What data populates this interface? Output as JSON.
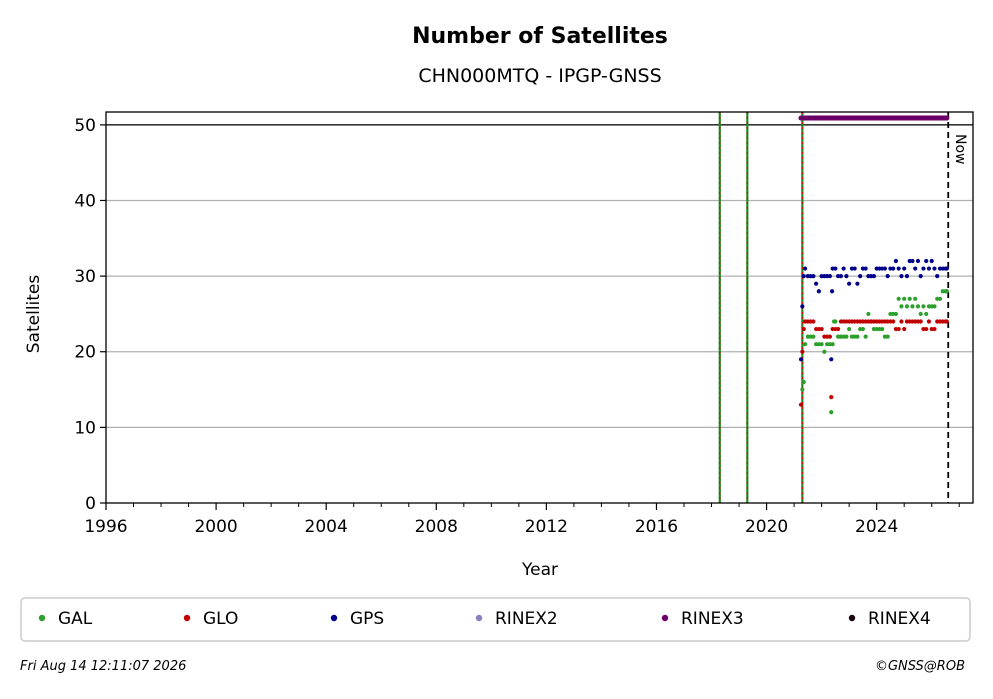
{
  "chart_data": {
    "type": "scatter",
    "title": "Number of Satellites",
    "subtitle": "CHN000MTQ - IPGP-GNSS",
    "xlabel": "Year",
    "ylabel": "Satellites",
    "xlim": [
      1996,
      2027.5
    ],
    "ylim": [
      0,
      51.7
    ],
    "x_ticks": [
      1996,
      2000,
      2004,
      2008,
      2012,
      2016,
      2020,
      2024
    ],
    "y_ticks": [
      0,
      10,
      20,
      30,
      40,
      50
    ],
    "grid": "horizontal",
    "reference_line_y": 50,
    "event_lines_x": [
      2018.3,
      2019.3,
      2021.3
    ],
    "now": {
      "x": 2026.6,
      "label": "Now"
    },
    "legend_placement": "bottom",
    "series": [
      {
        "name": "GAL",
        "color": "#2ca02c",
        "points": [
          [
            2021.3,
            15
          ],
          [
            2021.35,
            16
          ],
          [
            2021.4,
            21
          ],
          [
            2021.5,
            22
          ],
          [
            2021.6,
            22
          ],
          [
            2021.7,
            22
          ],
          [
            2021.8,
            21
          ],
          [
            2021.9,
            21
          ],
          [
            2022.0,
            21
          ],
          [
            2022.1,
            20
          ],
          [
            2022.2,
            21
          ],
          [
            2022.3,
            21
          ],
          [
            2022.35,
            12
          ],
          [
            2022.4,
            21
          ],
          [
            2022.45,
            24
          ],
          [
            2022.5,
            24
          ],
          [
            2022.6,
            22
          ],
          [
            2022.7,
            22
          ],
          [
            2022.8,
            22
          ],
          [
            2022.9,
            22
          ],
          [
            2023.0,
            23
          ],
          [
            2023.1,
            22
          ],
          [
            2023.2,
            22
          ],
          [
            2023.3,
            22
          ],
          [
            2023.4,
            23
          ],
          [
            2023.5,
            23
          ],
          [
            2023.6,
            22
          ],
          [
            2023.7,
            25
          ],
          [
            2023.8,
            24
          ],
          [
            2023.9,
            23
          ],
          [
            2024.0,
            23
          ],
          [
            2024.1,
            23
          ],
          [
            2024.2,
            23
          ],
          [
            2024.3,
            22
          ],
          [
            2024.4,
            22
          ],
          [
            2024.5,
            25
          ],
          [
            2024.6,
            25
          ],
          [
            2024.7,
            25
          ],
          [
            2024.8,
            27
          ],
          [
            2024.9,
            26
          ],
          [
            2025.0,
            27
          ],
          [
            2025.1,
            26
          ],
          [
            2025.2,
            27
          ],
          [
            2025.3,
            26
          ],
          [
            2025.4,
            27
          ],
          [
            2025.5,
            26
          ],
          [
            2025.6,
            25
          ],
          [
            2025.7,
            26
          ],
          [
            2025.8,
            25
          ],
          [
            2025.9,
            26
          ],
          [
            2026.0,
            26
          ],
          [
            2026.1,
            26
          ],
          [
            2026.2,
            27
          ],
          [
            2026.3,
            27
          ],
          [
            2026.4,
            28
          ],
          [
            2026.5,
            28
          ],
          [
            2026.55,
            28
          ]
        ]
      },
      {
        "name": "GLO",
        "color": "#c00000",
        "points": [
          [
            2021.25,
            13
          ],
          [
            2021.3,
            20
          ],
          [
            2021.35,
            23
          ],
          [
            2021.4,
            24
          ],
          [
            2021.5,
            24
          ],
          [
            2021.6,
            24
          ],
          [
            2021.7,
            24
          ],
          [
            2021.8,
            23
          ],
          [
            2021.9,
            23
          ],
          [
            2022.0,
            23
          ],
          [
            2022.1,
            22
          ],
          [
            2022.2,
            22
          ],
          [
            2022.3,
            22
          ],
          [
            2022.35,
            14
          ],
          [
            2022.4,
            23
          ],
          [
            2022.5,
            23
          ],
          [
            2022.6,
            23
          ],
          [
            2022.7,
            24
          ],
          [
            2022.8,
            24
          ],
          [
            2022.9,
            24
          ],
          [
            2023.0,
            24
          ],
          [
            2023.1,
            24
          ],
          [
            2023.2,
            24
          ],
          [
            2023.3,
            24
          ],
          [
            2023.4,
            24
          ],
          [
            2023.5,
            24
          ],
          [
            2023.6,
            24
          ],
          [
            2023.7,
            24
          ],
          [
            2023.8,
            24
          ],
          [
            2023.9,
            24
          ],
          [
            2024.0,
            24
          ],
          [
            2024.1,
            24
          ],
          [
            2024.2,
            24
          ],
          [
            2024.3,
            24
          ],
          [
            2024.4,
            24
          ],
          [
            2024.5,
            24
          ],
          [
            2024.6,
            24
          ],
          [
            2024.7,
            23
          ],
          [
            2024.8,
            23
          ],
          [
            2024.9,
            24
          ],
          [
            2025.0,
            23
          ],
          [
            2025.1,
            24
          ],
          [
            2025.2,
            24
          ],
          [
            2025.3,
            24
          ],
          [
            2025.4,
            24
          ],
          [
            2025.5,
            24
          ],
          [
            2025.6,
            24
          ],
          [
            2025.7,
            23
          ],
          [
            2025.8,
            23
          ],
          [
            2025.9,
            24
          ],
          [
            2026.0,
            23
          ],
          [
            2026.1,
            23
          ],
          [
            2026.2,
            24
          ],
          [
            2026.3,
            24
          ],
          [
            2026.4,
            24
          ],
          [
            2026.5,
            24
          ],
          [
            2026.55,
            24
          ]
        ]
      },
      {
        "name": "GPS",
        "color": "#00008b",
        "points": [
          [
            2021.25,
            19
          ],
          [
            2021.3,
            26
          ],
          [
            2021.35,
            30
          ],
          [
            2021.4,
            31
          ],
          [
            2021.5,
            30
          ],
          [
            2021.6,
            30
          ],
          [
            2021.7,
            30
          ],
          [
            2021.8,
            29
          ],
          [
            2021.9,
            28
          ],
          [
            2022.0,
            30
          ],
          [
            2022.1,
            30
          ],
          [
            2022.2,
            30
          ],
          [
            2022.3,
            30
          ],
          [
            2022.35,
            19
          ],
          [
            2022.38,
            28
          ],
          [
            2022.4,
            31
          ],
          [
            2022.5,
            31
          ],
          [
            2022.6,
            30
          ],
          [
            2022.7,
            30
          ],
          [
            2022.8,
            31
          ],
          [
            2022.9,
            30
          ],
          [
            2023.0,
            29
          ],
          [
            2023.1,
            31
          ],
          [
            2023.2,
            31
          ],
          [
            2023.3,
            29
          ],
          [
            2023.4,
            30
          ],
          [
            2023.5,
            31
          ],
          [
            2023.6,
            31
          ],
          [
            2023.7,
            30
          ],
          [
            2023.8,
            30
          ],
          [
            2023.9,
            30
          ],
          [
            2024.0,
            31
          ],
          [
            2024.1,
            31
          ],
          [
            2024.2,
            31
          ],
          [
            2024.3,
            31
          ],
          [
            2024.4,
            30
          ],
          [
            2024.5,
            31
          ],
          [
            2024.6,
            31
          ],
          [
            2024.7,
            32
          ],
          [
            2024.8,
            31
          ],
          [
            2024.9,
            30
          ],
          [
            2025.0,
            31
          ],
          [
            2025.1,
            30
          ],
          [
            2025.2,
            32
          ],
          [
            2025.3,
            32
          ],
          [
            2025.4,
            31
          ],
          [
            2025.5,
            32
          ],
          [
            2025.6,
            30
          ],
          [
            2025.7,
            31
          ],
          [
            2025.8,
            32
          ],
          [
            2025.9,
            31
          ],
          [
            2026.0,
            32
          ],
          [
            2026.1,
            31
          ],
          [
            2026.2,
            30
          ],
          [
            2026.3,
            31
          ],
          [
            2026.4,
            31
          ],
          [
            2026.5,
            31
          ],
          [
            2026.55,
            31
          ]
        ]
      },
      {
        "name": "RINEX2",
        "color": "#8c7fc0",
        "points": []
      },
      {
        "name": "RINEX3",
        "color": "#6a0068",
        "range": [
          2021.25,
          2026.55
        ],
        "y": 50.9
      },
      {
        "name": "RINEX4",
        "color": "#1a0010",
        "points": []
      }
    ]
  },
  "footer": {
    "timestamp": "Fri Aug 14 12:11:07 2026",
    "credit": "©GNSS@ROB"
  }
}
